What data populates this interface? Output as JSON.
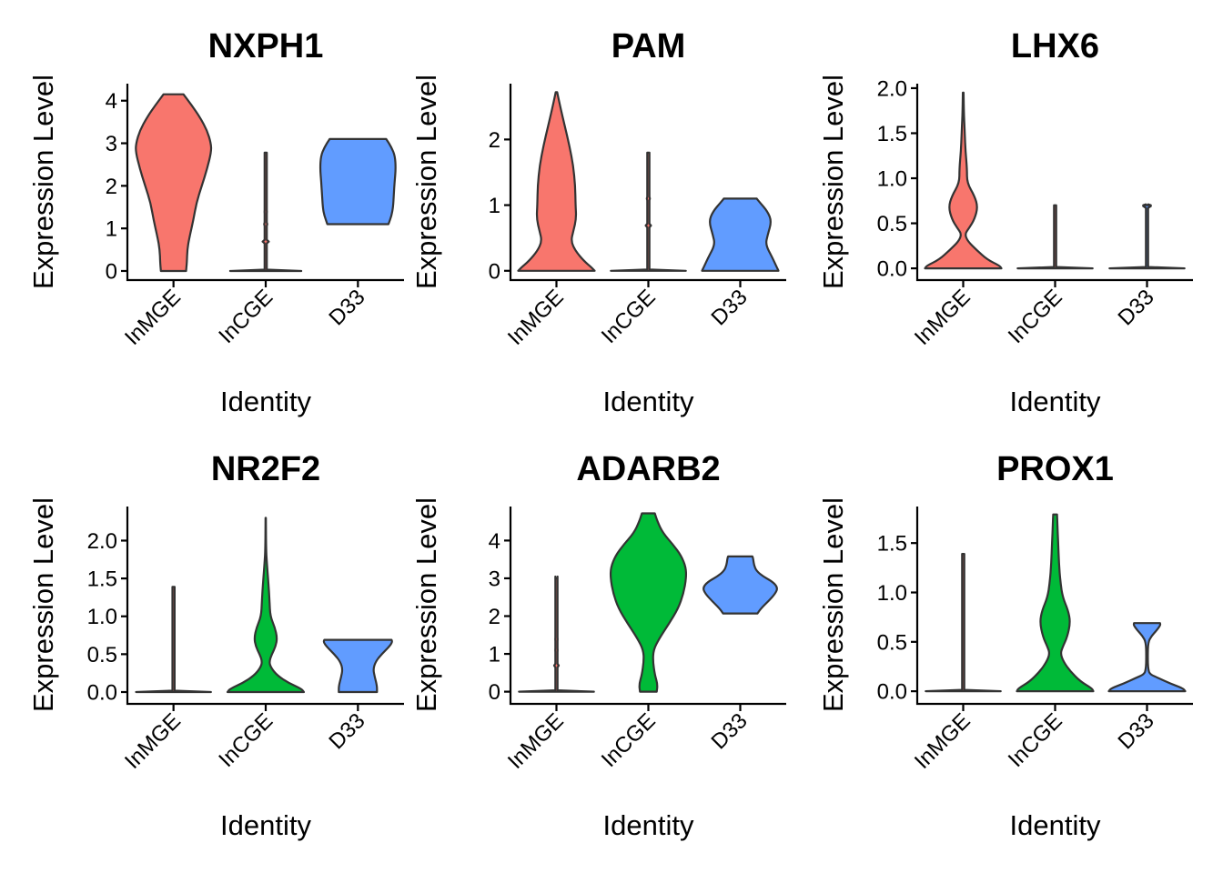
{
  "figure": {
    "layout": "2x3 grid of violin plots"
  },
  "chart_data": [
    {
      "type": "violin",
      "title": "NXPH1",
      "xlabel": "Identity",
      "ylabel": "Expression Level",
      "categories": [
        "InMGE",
        "InCGE",
        "D33"
      ],
      "ylim": [
        -0.15,
        4.4
      ],
      "yticks": [
        0,
        1,
        2,
        3,
        4
      ],
      "ytick_labels": [
        "0",
        "1",
        "2",
        "3",
        "4"
      ],
      "grid": false,
      "violins": [
        {
          "category": "InMGE",
          "color": "#F8766D",
          "range": [
            0,
            4.15
          ],
          "profile": [
            [
              0,
              0.33
            ],
            [
              0.2,
              0.35
            ],
            [
              0.5,
              0.36
            ],
            [
              0.8,
              0.42
            ],
            [
              1.2,
              0.52
            ],
            [
              1.6,
              0.6
            ],
            [
              2.0,
              0.74
            ],
            [
              2.4,
              0.88
            ],
            [
              2.8,
              0.99
            ],
            [
              3.0,
              0.98
            ],
            [
              3.3,
              0.88
            ],
            [
              3.6,
              0.7
            ],
            [
              3.9,
              0.47
            ],
            [
              4.15,
              0.26
            ]
          ]
        },
        {
          "category": "InCGE",
          "color": "#F8766D",
          "range": [
            0,
            2.78
          ],
          "degenerate": true,
          "base_width": 0.93,
          "bumps": [
            0.69,
            1.1,
            1.39,
            1.6,
            1.79
          ],
          "bump_widths": [
            0.08,
            0.04,
            0.03,
            0.02,
            0.02
          ]
        },
        {
          "category": "D33",
          "color": "#619CFF",
          "range": [
            1.1,
            3.1
          ],
          "profile": [
            [
              1.1,
              0.8
            ],
            [
              1.3,
              0.88
            ],
            [
              1.5,
              0.92
            ],
            [
              1.8,
              0.94
            ],
            [
              2.1,
              0.96
            ],
            [
              2.4,
              0.99
            ],
            [
              2.7,
              0.97
            ],
            [
              2.9,
              0.88
            ],
            [
              3.1,
              0.74
            ]
          ]
        }
      ]
    },
    {
      "type": "violin",
      "title": "PAM",
      "xlabel": "Identity",
      "ylabel": "Expression Level",
      "categories": [
        "InMGE",
        "InCGE",
        "D33"
      ],
      "ylim": [
        -0.1,
        2.85
      ],
      "yticks": [
        0,
        1,
        2
      ],
      "ytick_labels": [
        "0",
        "1",
        "2"
      ],
      "grid": false,
      "violins": [
        {
          "category": "InMGE",
          "color": "#F8766D",
          "range": [
            0,
            2.72
          ],
          "profile": [
            [
              0,
              1.0
            ],
            [
              0.05,
              0.92
            ],
            [
              0.15,
              0.72
            ],
            [
              0.3,
              0.5
            ],
            [
              0.45,
              0.38
            ],
            [
              0.6,
              0.44
            ],
            [
              0.8,
              0.52
            ],
            [
              1.0,
              0.5
            ],
            [
              1.3,
              0.49
            ],
            [
              1.6,
              0.44
            ],
            [
              1.9,
              0.34
            ],
            [
              2.2,
              0.22
            ],
            [
              2.5,
              0.1
            ],
            [
              2.72,
              0.02
            ]
          ]
        },
        {
          "category": "InCGE",
          "color": "#F8766D",
          "range": [
            0,
            1.8
          ],
          "degenerate": true,
          "base_width": 0.98,
          "bumps": [
            0.69,
            1.1,
            1.39
          ],
          "bump_widths": [
            0.07,
            0.04,
            0.02
          ]
        },
        {
          "category": "D33",
          "color": "#619CFF",
          "range": [
            0,
            1.1
          ],
          "profile": [
            [
              0,
              1.0
            ],
            [
              0.05,
              0.96
            ],
            [
              0.2,
              0.84
            ],
            [
              0.4,
              0.66
            ],
            [
              0.55,
              0.72
            ],
            [
              0.75,
              0.82
            ],
            [
              0.9,
              0.72
            ],
            [
              1.05,
              0.5
            ],
            [
              1.1,
              0.43
            ]
          ]
        }
      ]
    },
    {
      "type": "violin",
      "title": "LHX6",
      "xlabel": "Identity",
      "ylabel": "Expression Level",
      "categories": [
        "InMGE",
        "InCGE",
        "D33"
      ],
      "ylim": [
        -0.1,
        2.05
      ],
      "yticks": [
        0,
        0.5,
        1.0,
        1.5,
        2.0
      ],
      "ytick_labels": [
        "0.0",
        "0.5",
        "1.0",
        "1.5",
        "2.0"
      ],
      "grid": false,
      "violins": [
        {
          "category": "InMGE",
          "color": "#F8766D",
          "range": [
            0,
            1.95
          ],
          "profile": [
            [
              0,
              1.0
            ],
            [
              0.03,
              0.95
            ],
            [
              0.1,
              0.62
            ],
            [
              0.2,
              0.36
            ],
            [
              0.3,
              0.12
            ],
            [
              0.38,
              0.04
            ],
            [
              0.45,
              0.16
            ],
            [
              0.55,
              0.3
            ],
            [
              0.68,
              0.38
            ],
            [
              0.8,
              0.3
            ],
            [
              0.95,
              0.1
            ],
            [
              1.1,
              0.1
            ],
            [
              1.3,
              0.06
            ],
            [
              1.5,
              0.04
            ],
            [
              1.7,
              0.02
            ],
            [
              1.95,
              0.01
            ]
          ]
        },
        {
          "category": "InCGE",
          "color": "#F8766D",
          "range": [
            0,
            0.7
          ],
          "degenerate": true,
          "base_width": 0.98,
          "bumps": [],
          "bump_widths": []
        },
        {
          "category": "D33",
          "color": "#619CFF",
          "range": [
            0,
            0.7
          ],
          "degenerate": true,
          "base_width": 0.98,
          "bumps": [
            0.69
          ],
          "bump_widths": [
            0.1
          ]
        }
      ]
    },
    {
      "type": "violin",
      "title": "NR2F2",
      "xlabel": "Identity",
      "ylabel": "Expression Level",
      "categories": [
        "InMGE",
        "InCGE",
        "D33"
      ],
      "ylim": [
        -0.12,
        2.45
      ],
      "yticks": [
        0,
        0.5,
        1.0,
        1.5,
        2.0
      ],
      "ytick_labels": [
        "0.0",
        "0.5",
        "1.0",
        "1.5",
        "2.0"
      ],
      "grid": false,
      "violins": [
        {
          "category": "InMGE",
          "color": "#F8766D",
          "range": [
            0,
            1.39
          ],
          "degenerate": true,
          "base_width": 0.98,
          "bumps": [
            0.69,
            1.1
          ],
          "bump_widths": [
            0.02,
            0.02
          ]
        },
        {
          "category": "InCGE",
          "color": "#00BA38",
          "range": [
            0,
            2.3
          ],
          "profile": [
            [
              0,
              1.0
            ],
            [
              0.04,
              0.94
            ],
            [
              0.12,
              0.6
            ],
            [
              0.22,
              0.3
            ],
            [
              0.32,
              0.14
            ],
            [
              0.4,
              0.09
            ],
            [
              0.5,
              0.16
            ],
            [
              0.6,
              0.26
            ],
            [
              0.72,
              0.3
            ],
            [
              0.85,
              0.24
            ],
            [
              1.0,
              0.12
            ],
            [
              1.2,
              0.1
            ],
            [
              1.45,
              0.07
            ],
            [
              1.7,
              0.03
            ],
            [
              1.9,
              0.01
            ],
            [
              2.3,
              0.005
            ]
          ]
        },
        {
          "category": "D33",
          "color": "#619CFF",
          "range": [
            0,
            0.69
          ],
          "profile": [
            [
              0,
              0.5
            ],
            [
              0.08,
              0.5
            ],
            [
              0.2,
              0.44
            ],
            [
              0.3,
              0.4
            ],
            [
              0.4,
              0.46
            ],
            [
              0.5,
              0.62
            ],
            [
              0.6,
              0.82
            ],
            [
              0.66,
              0.9
            ],
            [
              0.69,
              0.88
            ]
          ]
        }
      ]
    },
    {
      "type": "violin",
      "title": "ADARB2",
      "xlabel": "Identity",
      "ylabel": "Expression Level",
      "categories": [
        "InMGE",
        "InCGE",
        "D33"
      ],
      "ylim": [
        -0.25,
        4.9
      ],
      "yticks": [
        0,
        1,
        2,
        3,
        4
      ],
      "ytick_labels": [
        "0",
        "1",
        "2",
        "3",
        "4"
      ],
      "grid": false,
      "violins": [
        {
          "category": "InMGE",
          "color": "#F8766D",
          "range": [
            0,
            3.0
          ],
          "degenerate": true,
          "base_width": 0.98,
          "bumps": [
            0.69,
            1.1,
            1.39,
            1.61,
            1.79,
            2.2,
            2.5,
            3.0
          ],
          "bump_widths": [
            0.06,
            0.03,
            0.03,
            0.02,
            0.02,
            0.02,
            0.02,
            0.02
          ]
        },
        {
          "category": "InCGE",
          "color": "#00BA38",
          "range": [
            0,
            4.72
          ],
          "profile": [
            [
              0,
              0.22
            ],
            [
              0.2,
              0.24
            ],
            [
              0.45,
              0.17
            ],
            [
              0.8,
              0.12
            ],
            [
              1.1,
              0.13
            ],
            [
              1.4,
              0.28
            ],
            [
              1.8,
              0.54
            ],
            [
              2.2,
              0.78
            ],
            [
              2.6,
              0.92
            ],
            [
              3.0,
              0.99
            ],
            [
              3.3,
              0.98
            ],
            [
              3.6,
              0.86
            ],
            [
              3.9,
              0.64
            ],
            [
              4.2,
              0.38
            ],
            [
              4.5,
              0.24
            ],
            [
              4.72,
              0.17
            ]
          ]
        },
        {
          "category": "D33",
          "color": "#619CFF",
          "range": [
            2.07,
            3.58
          ],
          "profile": [
            [
              2.07,
              0.45
            ],
            [
              2.2,
              0.54
            ],
            [
              2.4,
              0.74
            ],
            [
              2.6,
              0.92
            ],
            [
              2.75,
              0.98
            ],
            [
              2.9,
              0.86
            ],
            [
              3.05,
              0.6
            ],
            [
              3.2,
              0.42
            ],
            [
              3.35,
              0.36
            ],
            [
              3.5,
              0.34
            ],
            [
              3.58,
              0.32
            ]
          ]
        }
      ]
    },
    {
      "type": "violin",
      "title": "PROX1",
      "xlabel": "Identity",
      "ylabel": "Expression Level",
      "categories": [
        "InMGE",
        "InCGE",
        "D33"
      ],
      "ylim": [
        -0.1,
        1.87
      ],
      "yticks": [
        0,
        0.5,
        1.0,
        1.5
      ],
      "ytick_labels": [
        "0.0",
        "0.5",
        "1.0",
        "1.5"
      ],
      "grid": false,
      "violins": [
        {
          "category": "InMGE",
          "color": "#F8766D",
          "range": [
            0,
            1.39
          ],
          "degenerate": true,
          "base_width": 0.98,
          "bumps": [
            0.69,
            1.1
          ],
          "bump_widths": [
            0.02,
            0.01
          ]
        },
        {
          "category": "InCGE",
          "color": "#00BA38",
          "range": [
            0,
            1.79
          ],
          "profile": [
            [
              0,
              1.0
            ],
            [
              0.03,
              0.96
            ],
            [
              0.1,
              0.66
            ],
            [
              0.2,
              0.4
            ],
            [
              0.3,
              0.22
            ],
            [
              0.38,
              0.14
            ],
            [
              0.45,
              0.2
            ],
            [
              0.55,
              0.32
            ],
            [
              0.7,
              0.4
            ],
            [
              0.82,
              0.34
            ],
            [
              0.95,
              0.2
            ],
            [
              1.1,
              0.14
            ],
            [
              1.3,
              0.1
            ],
            [
              1.5,
              0.08
            ],
            [
              1.7,
              0.06
            ],
            [
              1.79,
              0.05
            ]
          ]
        },
        {
          "category": "D33",
          "color": "#619CFF",
          "range": [
            0,
            0.69
          ],
          "profile": [
            [
              0,
              1.0
            ],
            [
              0.03,
              0.94
            ],
            [
              0.08,
              0.6
            ],
            [
              0.13,
              0.32
            ],
            [
              0.17,
              0.08
            ],
            [
              0.22,
              0.03
            ],
            [
              0.35,
              0.02
            ],
            [
              0.5,
              0.03
            ],
            [
              0.56,
              0.12
            ],
            [
              0.62,
              0.26
            ],
            [
              0.67,
              0.35
            ],
            [
              0.69,
              0.34
            ]
          ]
        }
      ]
    }
  ]
}
